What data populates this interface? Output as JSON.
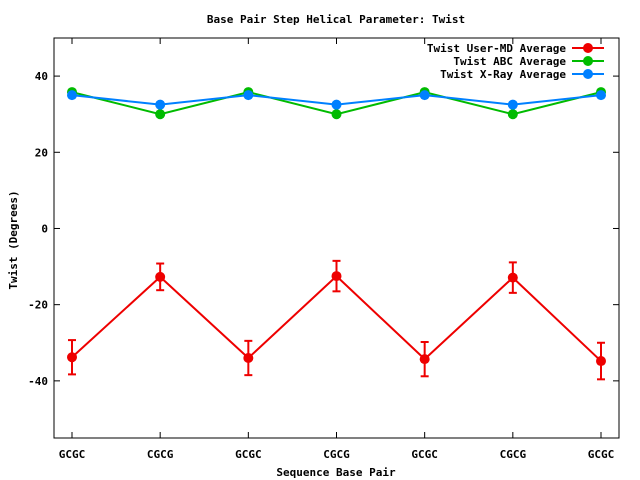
{
  "chart_data": {
    "type": "line",
    "title": "Base Pair Step Helical Parameter: Twist",
    "xlabel": "Sequence Base Pair",
    "ylabel": "Twist (Degrees)",
    "categories": [
      "GCGC",
      "CGCG",
      "GCGC",
      "CGCG",
      "GCGC",
      "CGCG",
      "GCGC"
    ],
    "ylim": [
      -55,
      50
    ],
    "yticks": [
      -40,
      -20,
      0,
      20,
      40
    ],
    "legend_position": "top-right",
    "series": [
      {
        "name": "Twist User-MD Average",
        "color": "#ee0000",
        "values": [
          -33.8,
          -12.7,
          -34.0,
          -12.5,
          -34.3,
          -12.9,
          -34.8
        ],
        "errors": [
          4.5,
          3.5,
          4.5,
          4.0,
          4.5,
          4.0,
          4.8
        ]
      },
      {
        "name": "Twist ABC Average",
        "color": "#00bb00",
        "values": [
          35.8,
          30.0,
          35.8,
          30.0,
          35.8,
          30.0,
          35.8
        ]
      },
      {
        "name": "Twist X-Ray Average",
        "color": "#0080ff",
        "values": [
          35.0,
          32.5,
          35.0,
          32.5,
          35.0,
          32.5,
          35.0
        ]
      }
    ]
  }
}
